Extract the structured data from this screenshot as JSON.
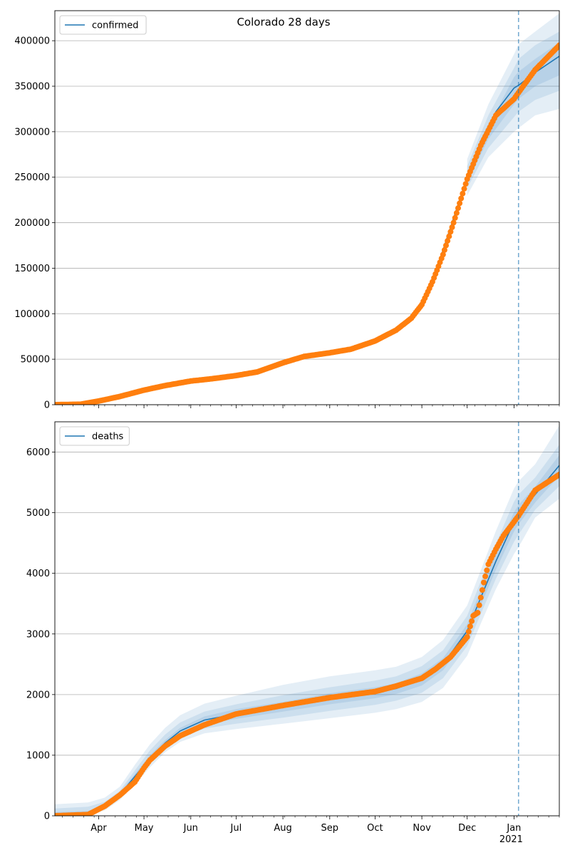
{
  "title": "Colorado 28 days",
  "colors": {
    "model_line": "#1f77b4",
    "observed": "#ff7f0e",
    "band": "#1f77b4",
    "forecast_divider": "#1f77b4",
    "grid": "#b0b0b0"
  },
  "chart_data": [
    {
      "type": "line",
      "panel": "confirmed",
      "title": "Colorado 28 days",
      "xlabel": "",
      "ylabel": "",
      "xlim": [
        "2020-03-03",
        "2021-01-31"
      ],
      "ylim": [
        0,
        433000
      ],
      "yticks": [
        0,
        50000,
        100000,
        150000,
        200000,
        250000,
        300000,
        350000,
        400000
      ],
      "grid": "y",
      "legend": {
        "placement": "top-left",
        "entries": [
          "confirmed"
        ]
      },
      "forecast_start": "2021-01-04",
      "model": {
        "name": "confirmed",
        "dates": [
          "2020-03-03",
          "2020-03-20",
          "2020-04-01",
          "2020-04-15",
          "2020-05-01",
          "2020-05-15",
          "2020-06-01",
          "2020-06-15",
          "2020-07-01",
          "2020-07-15",
          "2020-08-01",
          "2020-08-15",
          "2020-09-01",
          "2020-09-15",
          "2020-10-01",
          "2020-10-15",
          "2020-10-25",
          "2020-11-01",
          "2020-11-08",
          "2020-11-15",
          "2020-11-22",
          "2020-12-01",
          "2020-12-10",
          "2020-12-20",
          "2021-01-01",
          "2021-01-04",
          "2021-01-15",
          "2021-01-31"
        ],
        "values": [
          0,
          500,
          4000,
          10000,
          17000,
          22000,
          27000,
          29000,
          31000,
          34000,
          44000,
          51000,
          56000,
          60000,
          70000,
          80000,
          93000,
          110000,
          135000,
          170000,
          205000,
          250000,
          290000,
          322000,
          348000,
          351000,
          365000,
          383000
        ]
      },
      "bands": [
        {
          "level": "outer",
          "dates": [
            "2020-12-01",
            "2020-12-15",
            "2021-01-01",
            "2021-01-04",
            "2021-01-15",
            "2021-01-31"
          ],
          "lower": [
            230000,
            272000,
            300000,
            304000,
            318000,
            325000
          ],
          "upper": [
            270000,
            330000,
            385000,
            396000,
            410000,
            430000
          ]
        },
        {
          "level": "middle",
          "dates": [
            "2020-12-01",
            "2020-12-15",
            "2021-01-01",
            "2021-01-04",
            "2021-01-15",
            "2021-01-31"
          ],
          "lower": [
            238000,
            282000,
            316000,
            322000,
            335000,
            345000
          ],
          "upper": [
            262000,
            318000,
            370000,
            380000,
            395000,
            410000
          ]
        },
        {
          "level": "inner",
          "dates": [
            "2020-12-01",
            "2020-12-15",
            "2021-01-01",
            "2021-01-04",
            "2021-01-15",
            "2021-01-31"
          ],
          "lower": [
            244000,
            292000,
            330000,
            336000,
            350000,
            362000
          ],
          "upper": [
            256000,
            306000,
            360000,
            366000,
            380000,
            398000
          ]
        }
      ],
      "observed": {
        "dates": [
          "2020-03-03",
          "2020-03-20",
          "2020-04-01",
          "2020-04-15",
          "2020-05-01",
          "2020-05-15",
          "2020-06-01",
          "2020-06-15",
          "2020-07-01",
          "2020-07-15",
          "2020-08-01",
          "2020-08-15",
          "2020-09-01",
          "2020-09-15",
          "2020-10-01",
          "2020-10-15",
          "2020-10-25",
          "2020-11-01",
          "2020-11-08",
          "2020-11-15",
          "2020-11-22",
          "2020-12-01",
          "2020-12-10",
          "2020-12-20",
          "2021-01-01",
          "2021-01-04",
          "2021-01-15",
          "2021-01-31"
        ],
        "values": [
          0,
          500,
          4000,
          9000,
          16000,
          21000,
          26000,
          28500,
          32000,
          36000,
          46000,
          53000,
          57000,
          61000,
          70000,
          82000,
          95000,
          110000,
          135000,
          165000,
          200000,
          248000,
          285000,
          318000,
          336000,
          343000,
          368000,
          395000
        ]
      }
    },
    {
      "type": "line",
      "panel": "deaths",
      "xlabel": "",
      "ylabel": "",
      "xlim": [
        "2020-03-03",
        "2021-01-31"
      ],
      "ylim": [
        0,
        6500
      ],
      "yticks": [
        0,
        1000,
        2000,
        3000,
        4000,
        5000,
        6000
      ],
      "xticks": [
        {
          "date": "2020-04-01",
          "label": "Apr"
        },
        {
          "date": "2020-05-01",
          "label": "May"
        },
        {
          "date": "2020-06-01",
          "label": "Jun"
        },
        {
          "date": "2020-07-01",
          "label": "Jul"
        },
        {
          "date": "2020-08-01",
          "label": "Aug"
        },
        {
          "date": "2020-09-01",
          "label": "Sep"
        },
        {
          "date": "2020-10-01",
          "label": "Oct"
        },
        {
          "date": "2020-11-01",
          "label": "Nov"
        },
        {
          "date": "2020-12-01",
          "label": "Dec"
        },
        {
          "date": "2021-01-01",
          "label": "Jan",
          "sublabel": "2021"
        }
      ],
      "grid": "y",
      "legend": {
        "placement": "top-left",
        "entries": [
          "deaths"
        ]
      },
      "forecast_start": "2021-01-04",
      "model": {
        "name": "deaths",
        "dates": [
          "2020-03-03",
          "2020-03-25",
          "2020-04-05",
          "2020-04-15",
          "2020-04-25",
          "2020-05-05",
          "2020-05-15",
          "2020-05-25",
          "2020-06-10",
          "2020-07-01",
          "2020-08-01",
          "2020-09-01",
          "2020-10-01",
          "2020-10-15",
          "2020-11-01",
          "2020-11-15",
          "2020-12-01",
          "2020-12-10",
          "2020-12-20",
          "2021-01-01",
          "2021-01-04",
          "2021-01-15",
          "2021-01-31"
        ],
        "values": [
          0,
          20,
          150,
          350,
          650,
          950,
          1200,
          1400,
          1580,
          1680,
          1800,
          1930,
          2030,
          2100,
          2250,
          2500,
          3050,
          3600,
          4200,
          4850,
          4970,
          5300,
          5780
        ]
      },
      "bands": [
        {
          "level": "outer",
          "dates": [
            "2020-03-03",
            "2020-03-25",
            "2020-04-05",
            "2020-04-15",
            "2020-04-25",
            "2020-05-05",
            "2020-05-15",
            "2020-05-25",
            "2020-06-10",
            "2020-07-01",
            "2020-08-01",
            "2020-09-01",
            "2020-10-01",
            "2020-10-15",
            "2020-11-01",
            "2020-11-15",
            "2020-12-01",
            "2020-12-10",
            "2020-12-20",
            "2021-01-01",
            "2021-01-04",
            "2021-01-15",
            "2021-01-31"
          ],
          "lower": [
            0,
            0,
            90,
            260,
            520,
            800,
            1050,
            1220,
            1360,
            1430,
            1520,
            1610,
            1700,
            1760,
            1880,
            2110,
            2640,
            3170,
            3740,
            4320,
            4430,
            4920,
            5230
          ],
          "upper": [
            190,
            220,
            300,
            480,
            840,
            1180,
            1450,
            1660,
            1850,
            1980,
            2160,
            2300,
            2400,
            2460,
            2620,
            2900,
            3470,
            4050,
            4700,
            5400,
            5520,
            5800,
            6440
          ]
        },
        {
          "level": "middle",
          "dates": [
            "2020-03-03",
            "2020-03-25",
            "2020-04-05",
            "2020-04-15",
            "2020-04-25",
            "2020-05-05",
            "2020-05-15",
            "2020-05-25",
            "2020-06-10",
            "2020-07-01",
            "2020-08-01",
            "2020-09-01",
            "2020-10-01",
            "2020-10-15",
            "2020-11-01",
            "2020-11-15",
            "2020-12-01",
            "2020-12-10",
            "2020-12-20",
            "2021-01-01",
            "2021-01-04",
            "2021-01-15",
            "2021-01-31"
          ],
          "lower": [
            0,
            0,
            110,
            290,
            570,
            860,
            1110,
            1290,
            1440,
            1520,
            1620,
            1730,
            1830,
            1900,
            2030,
            2270,
            2800,
            3330,
            3910,
            4520,
            4640,
            5050,
            5440
          ],
          "upper": [
            120,
            150,
            230,
            410,
            750,
            1080,
            1340,
            1540,
            1720,
            1840,
            1990,
            2120,
            2230,
            2300,
            2470,
            2730,
            3300,
            3870,
            4490,
            5180,
            5300,
            5580,
            6120
          ]
        },
        {
          "level": "inner",
          "dates": [
            "2020-03-03",
            "2020-03-25",
            "2020-04-05",
            "2020-04-15",
            "2020-04-25",
            "2020-05-05",
            "2020-05-15",
            "2020-05-25",
            "2020-06-10",
            "2020-07-01",
            "2020-08-01",
            "2020-09-01",
            "2020-10-01",
            "2020-10-15",
            "2020-11-01",
            "2020-11-15",
            "2020-12-01",
            "2020-12-10",
            "2020-12-20",
            "2021-01-01",
            "2021-01-04",
            "2021-01-15",
            "2021-01-31"
          ],
          "lower": [
            0,
            0,
            130,
            320,
            610,
            910,
            1160,
            1350,
            1510,
            1600,
            1720,
            1840,
            1940,
            2010,
            2150,
            2400,
            2940,
            3470,
            4060,
            4690,
            4810,
            5170,
            5610
          ],
          "upper": [
            60,
            80,
            180,
            380,
            690,
            1000,
            1250,
            1450,
            1640,
            1760,
            1880,
            2020,
            2120,
            2190,
            2350,
            2600,
            3160,
            3730,
            4340,
            5010,
            5130,
            5430,
            5950
          ]
        }
      ],
      "observed": {
        "dates": [
          "2020-03-03",
          "2020-03-25",
          "2020-04-05",
          "2020-04-15",
          "2020-04-25",
          "2020-05-01",
          "2020-05-05",
          "2020-05-15",
          "2020-05-25",
          "2020-06-10",
          "2020-07-01",
          "2020-08-01",
          "2020-09-01",
          "2020-10-01",
          "2020-10-15",
          "2020-11-01",
          "2020-11-10",
          "2020-11-20",
          "2020-12-01",
          "2020-12-05",
          "2020-12-08",
          "2020-12-12",
          "2020-12-15",
          "2020-12-20",
          "2020-12-25",
          "2021-01-01",
          "2021-01-04",
          "2021-01-15",
          "2021-01-31"
        ],
        "values": [
          0,
          20,
          160,
          340,
          560,
          790,
          920,
          1150,
          1320,
          1500,
          1680,
          1820,
          1950,
          2050,
          2140,
          2270,
          2420,
          2620,
          2950,
          3300,
          3350,
          3850,
          4150,
          4400,
          4620,
          4850,
          4950,
          5370,
          5630
        ]
      }
    }
  ]
}
